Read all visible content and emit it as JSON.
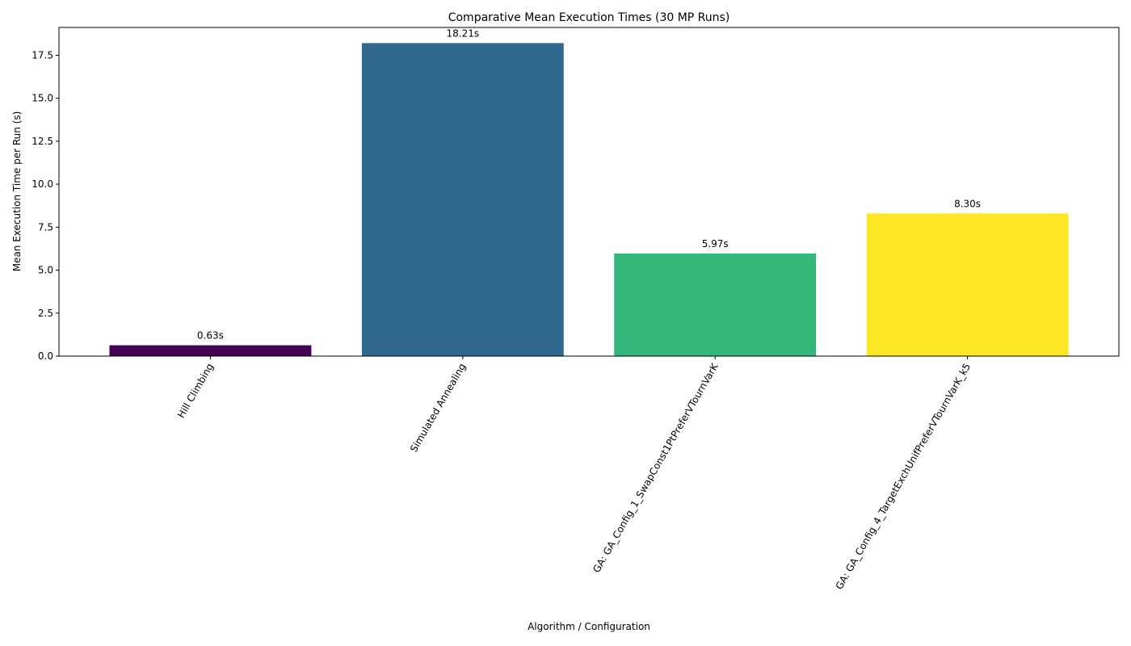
{
  "chart_data": {
    "type": "bar",
    "title": "Comparative Mean Execution Times (30 MP Runs)",
    "xlabel": "Algorithm / Configuration",
    "ylabel": "Mean Execution Time per Run (s)",
    "categories": [
      "Hill Climbing",
      "Simulated Annealing",
      "GA: GA_Config_1_SwapConst1PtPreferVTournVarK",
      "GA: GA_Config_4_TargetExchUnifPreferVTournVarK_k5"
    ],
    "values": [
      0.63,
      18.21,
      5.97,
      8.3
    ],
    "data_labels": [
      "0.63s",
      "18.21s",
      "5.97s",
      "8.30s"
    ],
    "colors": [
      "#440154",
      "#31688e",
      "#35b779",
      "#fde725"
    ],
    "ylim": [
      0,
      19.12
    ],
    "yticks": [
      0.0,
      2.5,
      5.0,
      7.5,
      10.0,
      12.5,
      15.0,
      17.5
    ],
    "ytick_labels": [
      "0.0",
      "2.5",
      "5.0",
      "7.5",
      "10.0",
      "12.5",
      "15.0",
      "17.5"
    ],
    "grid": false,
    "legend": "none"
  }
}
